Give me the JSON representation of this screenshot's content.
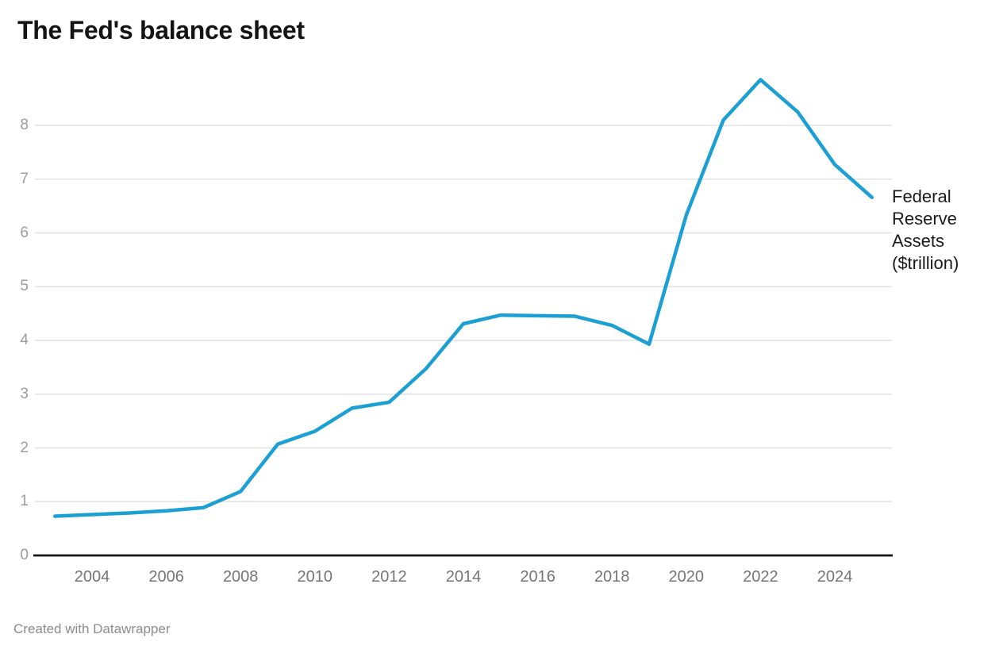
{
  "header": {
    "title": "The Fed's balance sheet"
  },
  "chart_data": {
    "type": "line",
    "title": "The Fed's balance sheet",
    "series_label": "Federal Reserve Assets ($trillion)",
    "x": [
      2003,
      2004,
      2005,
      2006,
      2007,
      2008,
      2009,
      2010,
      2011,
      2012,
      2013,
      2014,
      2015,
      2016,
      2017,
      2018,
      2019,
      2020,
      2021,
      2022,
      2023,
      2024,
      2025
    ],
    "values": [
      0.73,
      0.76,
      0.79,
      0.83,
      0.89,
      1.19,
      2.07,
      2.31,
      2.74,
      2.85,
      3.48,
      4.31,
      4.47,
      4.46,
      4.45,
      4.28,
      3.93,
      6.33,
      8.1,
      8.85,
      8.25,
      7.27,
      6.66
    ],
    "x_ticks": [
      2004,
      2006,
      2008,
      2010,
      2012,
      2014,
      2016,
      2018,
      2020,
      2022,
      2024
    ],
    "y_ticks": [
      0,
      1,
      2,
      3,
      4,
      5,
      6,
      7,
      8
    ],
    "xlabel": "",
    "ylabel": "",
    "xlim": [
      2003,
      2025
    ],
    "ylim": [
      0,
      9
    ],
    "grid": "horizontal",
    "legend_position": "right of line end",
    "line_color": "#1CA0D3",
    "axis_line_color": "#161616",
    "gridline_color": "#e2e2e2"
  },
  "footer": {
    "attribution": "Created with Datawrapper"
  }
}
